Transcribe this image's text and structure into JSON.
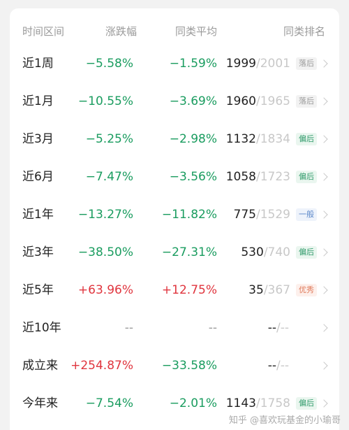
{
  "header": {
    "period": "时间区间",
    "change": "涨跌幅",
    "avg": "同类平均",
    "rank": "同类排名"
  },
  "rows": [
    {
      "period": "近1周",
      "change": "−5.58%",
      "change_color": "green",
      "avg": "−1.59%",
      "avg_color": "green",
      "rank": "1999",
      "total": "/2001",
      "tag": "落后",
      "tag_type": "bad"
    },
    {
      "period": "近1月",
      "change": "−10.55%",
      "change_color": "green",
      "avg": "−3.69%",
      "avg_color": "green",
      "rank": "1960",
      "total": "/1965",
      "tag": "落后",
      "tag_type": "bad"
    },
    {
      "period": "近3月",
      "change": "−5.25%",
      "change_color": "green",
      "avg": "−2.98%",
      "avg_color": "green",
      "rank": "1132",
      "total": "/1834",
      "tag": "偏后",
      "tag_type": "fair"
    },
    {
      "period": "近6月",
      "change": "−7.47%",
      "change_color": "green",
      "avg": "−3.56%",
      "avg_color": "green",
      "rank": "1058",
      "total": "/1723",
      "tag": "偏后",
      "tag_type": "fair"
    },
    {
      "period": "近1年",
      "change": "−13.27%",
      "change_color": "green",
      "avg": "−11.82%",
      "avg_color": "green",
      "rank": "775",
      "total": "/1529",
      "tag": "一般",
      "tag_type": "mid"
    },
    {
      "period": "近3年",
      "change": "−38.50%",
      "change_color": "green",
      "avg": "−27.31%",
      "avg_color": "green",
      "rank": "530",
      "total": "/740",
      "tag": "偏后",
      "tag_type": "fair"
    },
    {
      "period": "近5年",
      "change": "+63.96%",
      "change_color": "red",
      "avg": "+12.75%",
      "avg_color": "red",
      "rank": "35",
      "total": "/367",
      "tag": "优秀",
      "tag_type": "good"
    },
    {
      "period": "近10年",
      "change": "--",
      "change_color": "gray",
      "avg": "--",
      "avg_color": "gray",
      "rank": "--",
      "total": "/--",
      "tag": "",
      "tag_type": ""
    },
    {
      "period": "成立来",
      "change": "+254.87%",
      "change_color": "red",
      "avg": "−33.58%",
      "avg_color": "green",
      "rank": "--",
      "total": "/--",
      "tag": "",
      "tag_type": ""
    },
    {
      "period": "今年来",
      "change": "−7.54%",
      "change_color": "green",
      "avg": "−2.01%",
      "avg_color": "green",
      "rank": "1143",
      "total": "/1758",
      "tag": "偏后",
      "tag_type": "fair"
    }
  ],
  "watermark": "知乎 @喜欢玩基金的小瑜哥",
  "colors": {
    "green": "#1a9c5f",
    "red": "#e0353e"
  }
}
